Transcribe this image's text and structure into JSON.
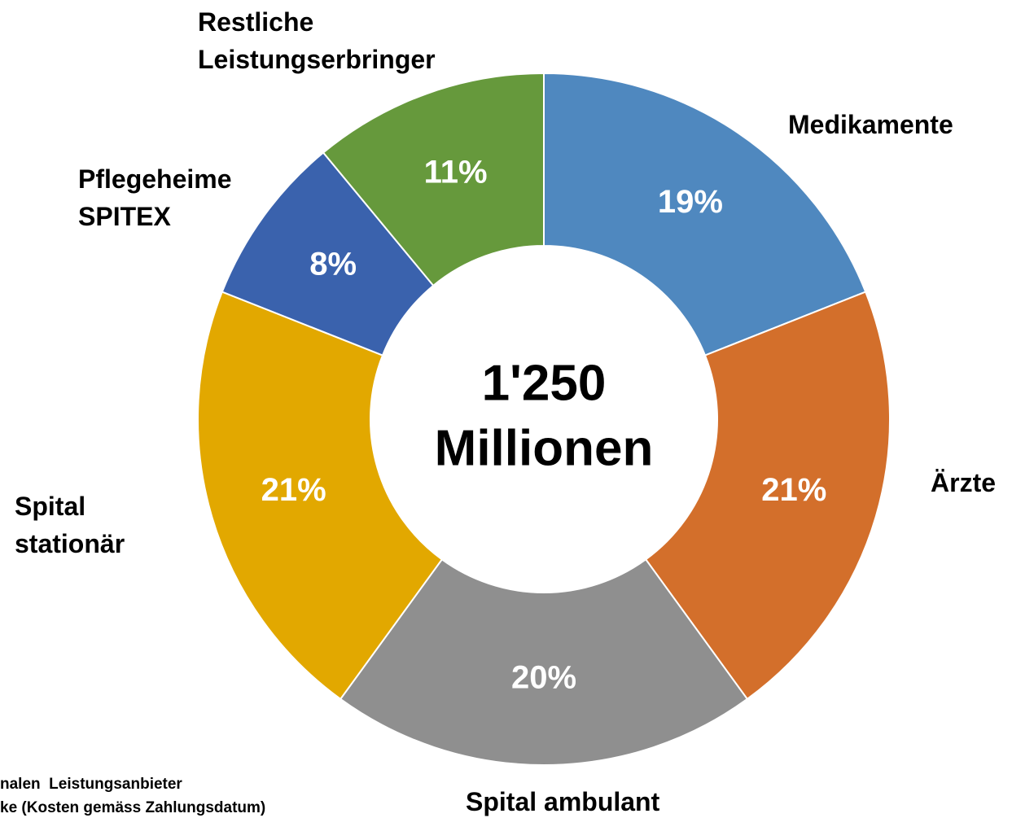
{
  "chart_data": {
    "type": "donut",
    "categories": [
      "Medikamente",
      "Ärzte",
      "Spital ambulant",
      "Spital\nstationär",
      "Pflegeheime\nSPITEX",
      "Restliche\nLeistungserbringer"
    ],
    "values": [
      19,
      21,
      20,
      21,
      8,
      11
    ],
    "value_labels": [
      "19%",
      "21%",
      "20%",
      "21%",
      "8%",
      "11%"
    ],
    "colors": [
      "#4f88bf",
      "#d36f2b",
      "#8f8f8f",
      "#e2a800",
      "#3a62ad",
      "#66993c"
    ],
    "center_lines": [
      "1'250",
      "Millionen"
    ],
    "footnotes": [
      "nalen  Leistungsanbieter",
      "ke (Kosten gemäss Zahlungsdatum)"
    ]
  }
}
